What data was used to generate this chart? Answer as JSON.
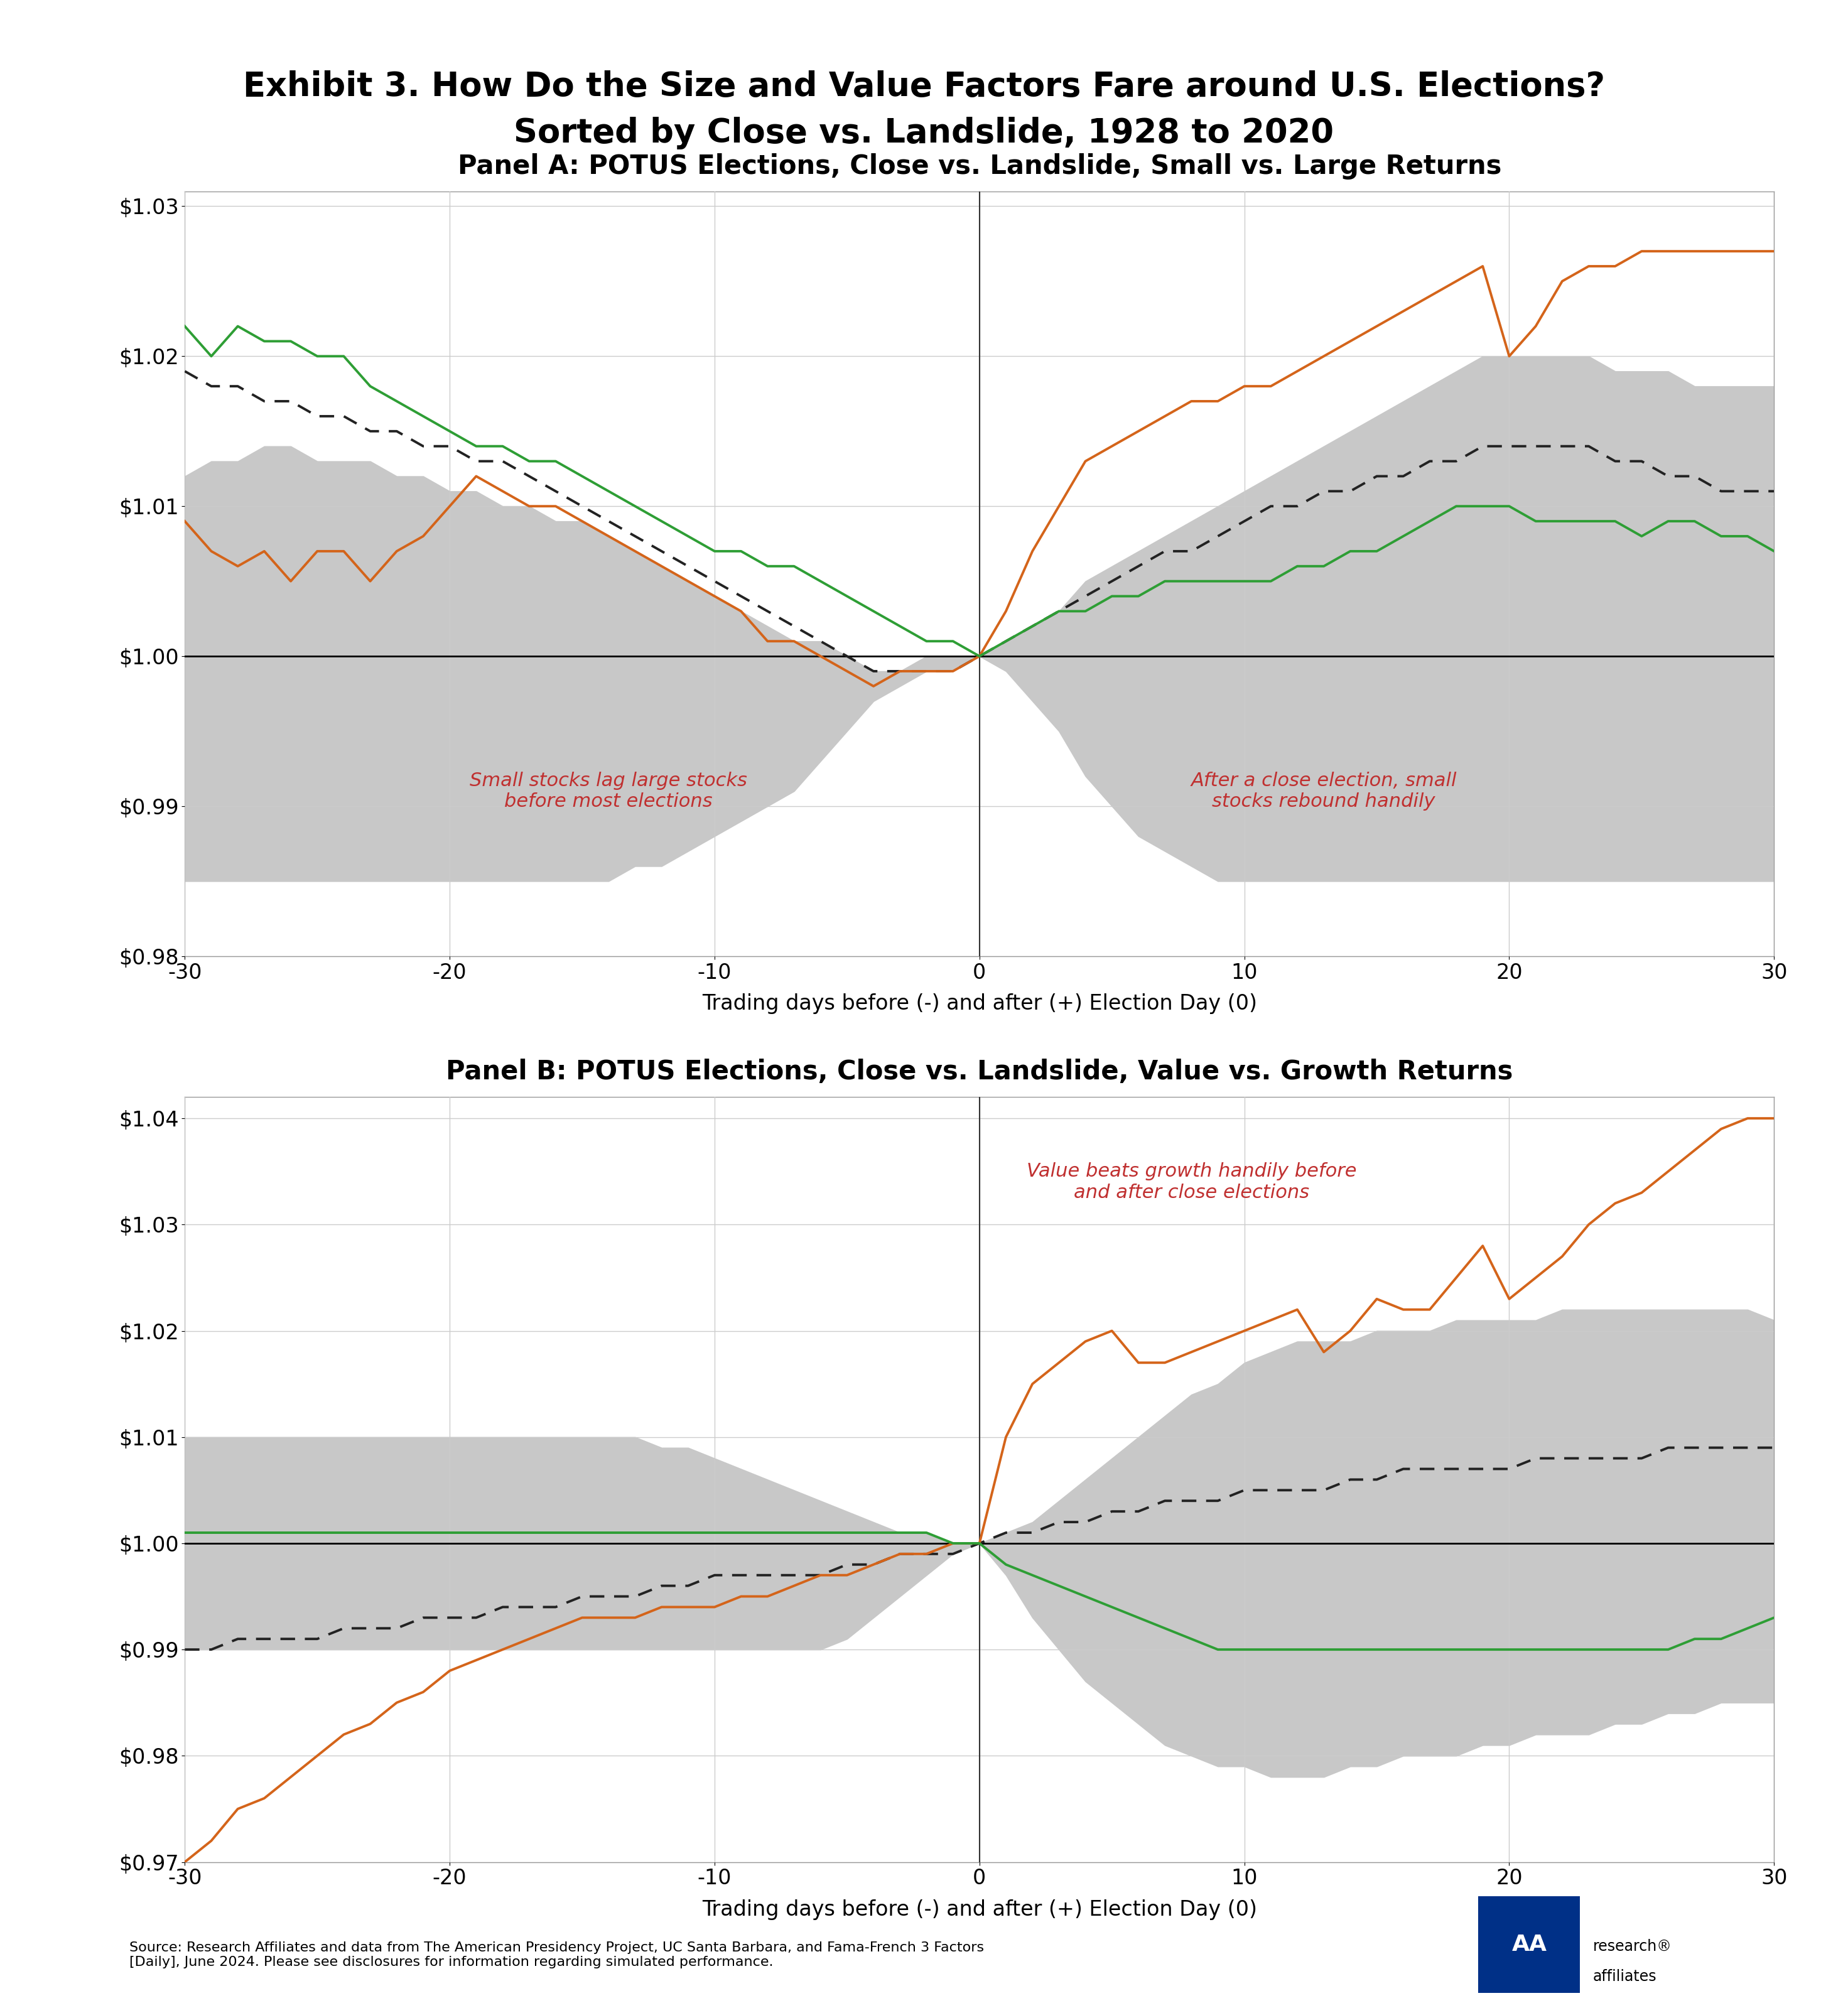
{
  "title_line1": "Exhibit 3. How Do the Size and Value Factors Fare around U.S. Elections?",
  "title_line2": "Sorted by Close vs. Landslide, 1928 to 2020",
  "panel_a_title": "Panel A: POTUS Elections, Close vs. Landslide, Small vs. Large Returns",
  "panel_b_title": "Panel B: POTUS Elections, Close vs. Landslide, Value vs. Growth Returns",
  "xlabel": "Trading days before (-) and after (+) Election Day (0)",
  "x_ticks": [
    -30,
    -20,
    -10,
    0,
    10,
    20,
    30
  ],
  "annotation_a_left": "Small stocks lag large stocks\nbefore most elections",
  "annotation_a_right": "After a close election, small\nstocks rebound handily",
  "annotation_b_right": "Value beats growth handily before\nand after close elections",
  "source_text": "Source: Research Affiliates and data from The American Presidency Project, UC Santa Barbara, and Fama-French 3 Factors\n[Daily], June 2024. Please see disclosures for information regarding simulated performance.",
  "panel_a": {
    "ylim": [
      0.98,
      1.031
    ],
    "yticks": [
      0.98,
      0.99,
      1.0,
      1.01,
      1.02,
      1.03
    ],
    "ytick_labels": [
      "$0.98",
      "$0.99",
      "$1.00",
      "$1.01",
      "$1.02",
      "$1.03"
    ],
    "x": [
      -30,
      -29,
      -28,
      -27,
      -26,
      -25,
      -24,
      -23,
      -22,
      -21,
      -20,
      -19,
      -18,
      -17,
      -16,
      -15,
      -14,
      -13,
      -12,
      -11,
      -10,
      -9,
      -8,
      -7,
      -6,
      -5,
      -4,
      -3,
      -2,
      -1,
      0,
      1,
      2,
      3,
      4,
      5,
      6,
      7,
      8,
      9,
      10,
      11,
      12,
      13,
      14,
      15,
      16,
      17,
      18,
      19,
      20,
      21,
      22,
      23,
      24,
      25,
      26,
      27,
      28,
      29,
      30
    ],
    "ci_upper": [
      1.012,
      1.013,
      1.013,
      1.014,
      1.014,
      1.013,
      1.013,
      1.013,
      1.012,
      1.012,
      1.011,
      1.011,
      1.01,
      1.01,
      1.009,
      1.009,
      1.008,
      1.007,
      1.006,
      1.005,
      1.004,
      1.003,
      1.002,
      1.001,
      1.001,
      1.0,
      0.999,
      0.999,
      1.0,
      1.0,
      1.0,
      1.001,
      1.002,
      1.003,
      1.005,
      1.006,
      1.007,
      1.008,
      1.009,
      1.01,
      1.011,
      1.012,
      1.013,
      1.014,
      1.015,
      1.016,
      1.017,
      1.018,
      1.019,
      1.02,
      1.02,
      1.02,
      1.02,
      1.02,
      1.019,
      1.019,
      1.019,
      1.018,
      1.018,
      1.018,
      1.018
    ],
    "ci_lower": [
      0.985,
      0.985,
      0.985,
      0.985,
      0.985,
      0.985,
      0.985,
      0.985,
      0.985,
      0.985,
      0.985,
      0.985,
      0.985,
      0.985,
      0.985,
      0.985,
      0.985,
      0.986,
      0.986,
      0.987,
      0.988,
      0.989,
      0.99,
      0.991,
      0.993,
      0.995,
      0.997,
      0.998,
      0.999,
      0.999,
      1.0,
      0.999,
      0.997,
      0.995,
      0.992,
      0.99,
      0.988,
      0.987,
      0.986,
      0.985,
      0.985,
      0.985,
      0.985,
      0.985,
      0.985,
      0.985,
      0.985,
      0.985,
      0.985,
      0.985,
      0.985,
      0.985,
      0.985,
      0.985,
      0.985,
      0.985,
      0.985,
      0.985,
      0.985,
      0.985,
      0.985
    ],
    "avg": [
      1.019,
      1.018,
      1.018,
      1.017,
      1.017,
      1.016,
      1.016,
      1.015,
      1.015,
      1.014,
      1.014,
      1.013,
      1.013,
      1.012,
      1.011,
      1.01,
      1.009,
      1.008,
      1.007,
      1.006,
      1.005,
      1.004,
      1.003,
      1.002,
      1.001,
      1.0,
      0.999,
      0.999,
      0.999,
      0.999,
      1.0,
      1.001,
      1.002,
      1.003,
      1.004,
      1.005,
      1.006,
      1.007,
      1.007,
      1.008,
      1.009,
      1.01,
      1.01,
      1.011,
      1.011,
      1.012,
      1.012,
      1.013,
      1.013,
      1.014,
      1.014,
      1.014,
      1.014,
      1.014,
      1.013,
      1.013,
      1.012,
      1.012,
      1.011,
      1.011,
      1.011
    ],
    "close": [
      1.009,
      1.007,
      1.006,
      1.007,
      1.005,
      1.007,
      1.007,
      1.005,
      1.007,
      1.008,
      1.01,
      1.012,
      1.011,
      1.01,
      1.01,
      1.009,
      1.008,
      1.007,
      1.006,
      1.005,
      1.004,
      1.003,
      1.001,
      1.001,
      1.0,
      0.999,
      0.998,
      0.999,
      0.999,
      0.999,
      1.0,
      1.003,
      1.007,
      1.01,
      1.013,
      1.014,
      1.015,
      1.016,
      1.017,
      1.017,
      1.018,
      1.018,
      1.019,
      1.02,
      1.021,
      1.022,
      1.023,
      1.024,
      1.025,
      1.026,
      1.02,
      1.022,
      1.025,
      1.026,
      1.026,
      1.027,
      1.027,
      1.027,
      1.027,
      1.027,
      1.027
    ],
    "landslide": [
      1.022,
      1.02,
      1.022,
      1.021,
      1.021,
      1.02,
      1.02,
      1.018,
      1.017,
      1.016,
      1.015,
      1.014,
      1.014,
      1.013,
      1.013,
      1.012,
      1.011,
      1.01,
      1.009,
      1.008,
      1.007,
      1.007,
      1.006,
      1.006,
      1.005,
      1.004,
      1.003,
      1.002,
      1.001,
      1.001,
      1.0,
      1.001,
      1.002,
      1.003,
      1.003,
      1.004,
      1.004,
      1.005,
      1.005,
      1.005,
      1.005,
      1.005,
      1.006,
      1.006,
      1.007,
      1.007,
      1.008,
      1.009,
      1.01,
      1.01,
      1.01,
      1.009,
      1.009,
      1.009,
      1.009,
      1.008,
      1.009,
      1.009,
      1.008,
      1.008,
      1.007
    ]
  },
  "panel_b": {
    "ylim": [
      0.97,
      1.042
    ],
    "yticks": [
      0.97,
      0.98,
      0.99,
      1.0,
      1.01,
      1.02,
      1.03,
      1.04
    ],
    "ytick_labels": [
      "$0.97",
      "$0.98",
      "$0.99",
      "$1.00",
      "$1.01",
      "$1.02",
      "$1.03",
      "$1.04"
    ],
    "x": [
      -30,
      -29,
      -28,
      -27,
      -26,
      -25,
      -24,
      -23,
      -22,
      -21,
      -20,
      -19,
      -18,
      -17,
      -16,
      -15,
      -14,
      -13,
      -12,
      -11,
      -10,
      -9,
      -8,
      -7,
      -6,
      -5,
      -4,
      -3,
      -2,
      -1,
      0,
      1,
      2,
      3,
      4,
      5,
      6,
      7,
      8,
      9,
      10,
      11,
      12,
      13,
      14,
      15,
      16,
      17,
      18,
      19,
      20,
      21,
      22,
      23,
      24,
      25,
      26,
      27,
      28,
      29,
      30
    ],
    "ci_upper": [
      1.01,
      1.01,
      1.01,
      1.01,
      1.01,
      1.01,
      1.01,
      1.01,
      1.01,
      1.01,
      1.01,
      1.01,
      1.01,
      1.01,
      1.01,
      1.01,
      1.01,
      1.01,
      1.009,
      1.009,
      1.008,
      1.007,
      1.006,
      1.005,
      1.004,
      1.003,
      1.002,
      1.001,
      1.001,
      1.0,
      1.0,
      1.001,
      1.002,
      1.004,
      1.006,
      1.008,
      1.01,
      1.012,
      1.014,
      1.015,
      1.017,
      1.018,
      1.019,
      1.019,
      1.019,
      1.02,
      1.02,
      1.02,
      1.021,
      1.021,
      1.021,
      1.021,
      1.022,
      1.022,
      1.022,
      1.022,
      1.022,
      1.022,
      1.022,
      1.022,
      1.021
    ],
    "ci_lower": [
      0.99,
      0.99,
      0.99,
      0.99,
      0.99,
      0.99,
      0.99,
      0.99,
      0.99,
      0.99,
      0.99,
      0.99,
      0.99,
      0.99,
      0.99,
      0.99,
      0.99,
      0.99,
      0.99,
      0.99,
      0.99,
      0.99,
      0.99,
      0.99,
      0.99,
      0.991,
      0.993,
      0.995,
      0.997,
      0.999,
      1.0,
      0.997,
      0.993,
      0.99,
      0.987,
      0.985,
      0.983,
      0.981,
      0.98,
      0.979,
      0.979,
      0.978,
      0.978,
      0.978,
      0.979,
      0.979,
      0.98,
      0.98,
      0.98,
      0.981,
      0.981,
      0.982,
      0.982,
      0.982,
      0.983,
      0.983,
      0.984,
      0.984,
      0.985,
      0.985,
      0.985
    ],
    "avg": [
      0.99,
      0.99,
      0.991,
      0.991,
      0.991,
      0.991,
      0.992,
      0.992,
      0.992,
      0.993,
      0.993,
      0.993,
      0.994,
      0.994,
      0.994,
      0.995,
      0.995,
      0.995,
      0.996,
      0.996,
      0.997,
      0.997,
      0.997,
      0.997,
      0.997,
      0.998,
      0.998,
      0.999,
      0.999,
      0.999,
      1.0,
      1.001,
      1.001,
      1.002,
      1.002,
      1.003,
      1.003,
      1.004,
      1.004,
      1.004,
      1.005,
      1.005,
      1.005,
      1.005,
      1.006,
      1.006,
      1.007,
      1.007,
      1.007,
      1.007,
      1.007,
      1.008,
      1.008,
      1.008,
      1.008,
      1.008,
      1.009,
      1.009,
      1.009,
      1.009,
      1.009
    ],
    "close": [
      0.97,
      0.972,
      0.975,
      0.976,
      0.978,
      0.98,
      0.982,
      0.983,
      0.985,
      0.986,
      0.988,
      0.989,
      0.99,
      0.991,
      0.992,
      0.993,
      0.993,
      0.993,
      0.994,
      0.994,
      0.994,
      0.995,
      0.995,
      0.996,
      0.997,
      0.997,
      0.998,
      0.999,
      0.999,
      1.0,
      1.0,
      1.01,
      1.015,
      1.017,
      1.019,
      1.02,
      1.017,
      1.017,
      1.018,
      1.019,
      1.02,
      1.021,
      1.022,
      1.018,
      1.02,
      1.023,
      1.022,
      1.022,
      1.025,
      1.028,
      1.023,
      1.025,
      1.027,
      1.03,
      1.032,
      1.033,
      1.035,
      1.037,
      1.039,
      1.04,
      1.04
    ],
    "landslide": [
      1.001,
      1.001,
      1.001,
      1.001,
      1.001,
      1.001,
      1.001,
      1.001,
      1.001,
      1.001,
      1.001,
      1.001,
      1.001,
      1.001,
      1.001,
      1.001,
      1.001,
      1.001,
      1.001,
      1.001,
      1.001,
      1.001,
      1.001,
      1.001,
      1.001,
      1.001,
      1.001,
      1.001,
      1.001,
      1.0,
      1.0,
      0.998,
      0.997,
      0.996,
      0.995,
      0.994,
      0.993,
      0.992,
      0.991,
      0.99,
      0.99,
      0.99,
      0.99,
      0.99,
      0.99,
      0.99,
      0.99,
      0.99,
      0.99,
      0.99,
      0.99,
      0.99,
      0.99,
      0.99,
      0.99,
      0.99,
      0.99,
      0.991,
      0.991,
      0.992,
      0.993
    ]
  },
  "colors": {
    "ci_fill": "#c8c8c8",
    "avg": "#222222",
    "close": "#d4641a",
    "landslide": "#2e9e35",
    "annotation_a": "#c03030",
    "annotation_b": "#c03030",
    "hline": "#000000",
    "vline": "#555555"
  }
}
